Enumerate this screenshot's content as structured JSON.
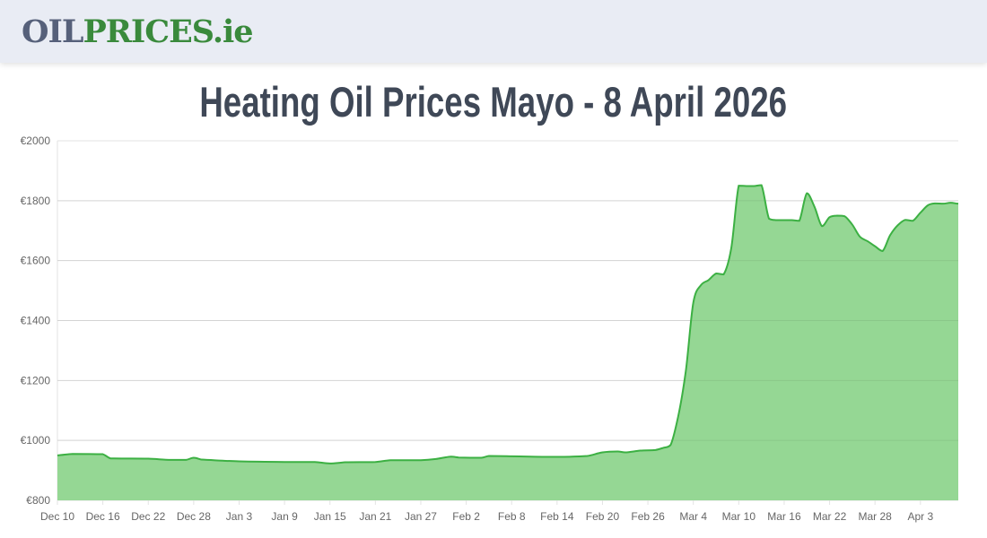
{
  "header": {
    "logo_part1": "OIL",
    "logo_part2": "PRICES.ie"
  },
  "title": "Heating Oil Prices Mayo - 8 April 2026",
  "colors": {
    "line": "#3cb043",
    "fill": "#93d692",
    "grid": "#e3e3e3",
    "title": "#3f4857",
    "logo_gray": "#56607a",
    "logo_green": "#3a8a3c"
  },
  "chart_data": {
    "type": "area",
    "title": "Heating Oil Prices Mayo - 8 April 2026",
    "xlabel": "",
    "ylabel": "",
    "ylim": [
      800,
      2000
    ],
    "grid": true,
    "y_ticks": [
      "€800",
      "€1000",
      "€1200",
      "€1400",
      "€1600",
      "€1800",
      "€2000"
    ],
    "x_ticks": [
      "Dec 10",
      "Dec 16",
      "Dec 22",
      "Dec 28",
      "Jan 3",
      "Jan 9",
      "Jan 15",
      "Jan 21",
      "Jan 27",
      "Feb 2",
      "Feb 8",
      "Feb 14",
      "Feb 20",
      "Feb 26",
      "Mar 4",
      "Mar 10",
      "Mar 16",
      "Mar 22",
      "Mar 28",
      "Apr 3"
    ],
    "points": [
      {
        "date": "Dec 10",
        "value": 950
      },
      {
        "date": "Dec 12",
        "value": 955
      },
      {
        "date": "Dec 16",
        "value": 954
      },
      {
        "date": "Dec 17",
        "value": 940
      },
      {
        "date": "Dec 22",
        "value": 939
      },
      {
        "date": "Dec 25",
        "value": 935
      },
      {
        "date": "Dec 27",
        "value": 935
      },
      {
        "date": "Dec 28",
        "value": 942
      },
      {
        "date": "Dec 29",
        "value": 936
      },
      {
        "date": "Jan 3",
        "value": 930
      },
      {
        "date": "Jan 9",
        "value": 928
      },
      {
        "date": "Jan 13",
        "value": 928
      },
      {
        "date": "Jan 15",
        "value": 923
      },
      {
        "date": "Jan 17",
        "value": 927
      },
      {
        "date": "Jan 21",
        "value": 928
      },
      {
        "date": "Jan 23",
        "value": 934
      },
      {
        "date": "Jan 27",
        "value": 934
      },
      {
        "date": "Jan 29",
        "value": 938
      },
      {
        "date": "Jan 31",
        "value": 946
      },
      {
        "date": "Feb 1",
        "value": 943
      },
      {
        "date": "Feb 4",
        "value": 942
      },
      {
        "date": "Feb 5",
        "value": 948
      },
      {
        "date": "Feb 8",
        "value": 947
      },
      {
        "date": "Feb 14",
        "value": 945
      },
      {
        "date": "Feb 18",
        "value": 948
      },
      {
        "date": "Feb 20",
        "value": 960
      },
      {
        "date": "Feb 22",
        "value": 963
      },
      {
        "date": "Feb 23",
        "value": 960
      },
      {
        "date": "Feb 25",
        "value": 966
      },
      {
        "date": "Feb 27",
        "value": 968
      },
      {
        "date": "Feb 28",
        "value": 975
      },
      {
        "date": "Mar 1",
        "value": 985
      },
      {
        "date": "Mar 2",
        "value": 1080
      },
      {
        "date": "Mar 3",
        "value": 1230
      },
      {
        "date": "Mar 4",
        "value": 1460
      },
      {
        "date": "Mar 5",
        "value": 1518
      },
      {
        "date": "Mar 6",
        "value": 1535
      },
      {
        "date": "Mar 7",
        "value": 1557
      },
      {
        "date": "Mar 8",
        "value": 1554
      },
      {
        "date": "Mar 9",
        "value": 1640
      },
      {
        "date": "Mar 10",
        "value": 1850
      },
      {
        "date": "Mar 11",
        "value": 1849
      },
      {
        "date": "Mar 12",
        "value": 1849
      },
      {
        "date": "Mar 13",
        "value": 1852
      },
      {
        "date": "Mar 14",
        "value": 1740
      },
      {
        "date": "Mar 15",
        "value": 1735
      },
      {
        "date": "Mar 16",
        "value": 1735
      },
      {
        "date": "Mar 17",
        "value": 1735
      },
      {
        "date": "Mar 18",
        "value": 1733
      },
      {
        "date": "Mar 19",
        "value": 1825
      },
      {
        "date": "Mar 20",
        "value": 1780
      },
      {
        "date": "Mar 21",
        "value": 1715
      },
      {
        "date": "Mar 22",
        "value": 1745
      },
      {
        "date": "Mar 23",
        "value": 1750
      },
      {
        "date": "Mar 24",
        "value": 1748
      },
      {
        "date": "Mar 25",
        "value": 1720
      },
      {
        "date": "Mar 26",
        "value": 1680
      },
      {
        "date": "Mar 27",
        "value": 1665
      },
      {
        "date": "Mar 28",
        "value": 1648
      },
      {
        "date": "Mar 29",
        "value": 1632
      },
      {
        "date": "Mar 30",
        "value": 1685
      },
      {
        "date": "Mar 31",
        "value": 1718
      },
      {
        "date": "Apr 1",
        "value": 1736
      },
      {
        "date": "Apr 2",
        "value": 1733
      },
      {
        "date": "Apr 3",
        "value": 1760
      },
      {
        "date": "Apr 4",
        "value": 1785
      },
      {
        "date": "Apr 5",
        "value": 1791
      },
      {
        "date": "Apr 6",
        "value": 1790
      },
      {
        "date": "Apr 7",
        "value": 1793
      },
      {
        "date": "Apr 8",
        "value": 1790
      }
    ]
  }
}
